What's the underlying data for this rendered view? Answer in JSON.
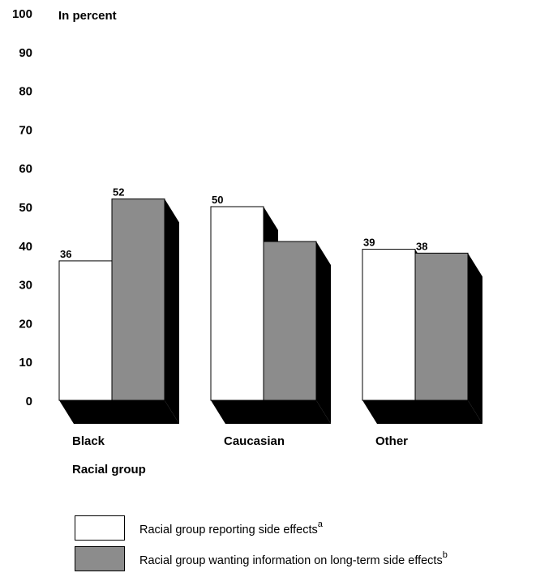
{
  "chart_data": {
    "type": "bar",
    "ylabel": "In percent",
    "xlabel": "Racial group",
    "ylim": [
      0,
      100
    ],
    "yticks": [
      0,
      10,
      20,
      30,
      40,
      50,
      60,
      70,
      80,
      90,
      100
    ],
    "categories": [
      "Black",
      "Caucasian",
      "Other"
    ],
    "series": [
      {
        "name": "Racial group reporting side effects",
        "footnote": "a",
        "color": "#ffffff",
        "values": [
          36,
          50,
          39
        ]
      },
      {
        "name": "Racial group wanting information on long-term side effects",
        "footnote": "b",
        "color": "#8c8c8c",
        "values": [
          52,
          41,
          38
        ]
      }
    ],
    "shadow_color": "#000000",
    "legend_position": "bottom-left"
  }
}
